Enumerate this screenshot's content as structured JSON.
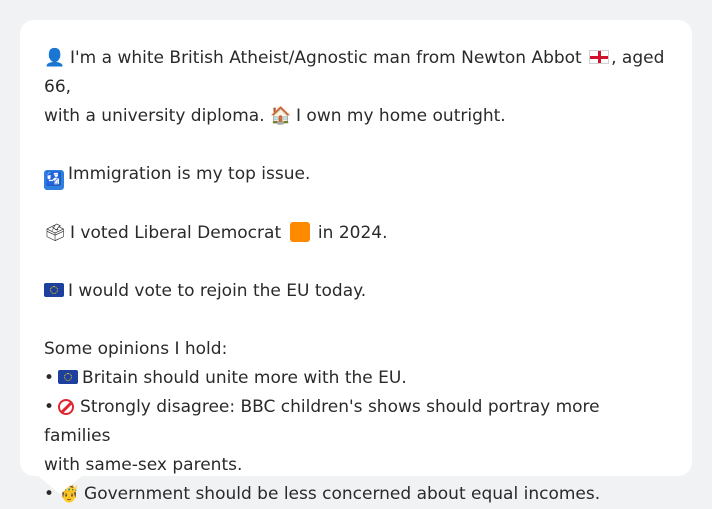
{
  "profile": {
    "identity_line1": "I'm a white British Atheist/Agnostic man from Newton Abbot",
    "identity_line1_suffix": ", aged 66,",
    "identity_line2": "with a university diploma.",
    "home": "I own my home outright.",
    "top_issue": "Immigration is my top issue.",
    "vote_prefix": "I voted Liberal Democrat",
    "vote_suffix": "in 2024.",
    "eu_vote": "I would vote to rejoin the EU today.",
    "opinions_heading": "Some opinions I hold:",
    "opinions": [
      {
        "bullet": "•",
        "text": "Britain should unite more with the EU."
      },
      {
        "bullet": "•",
        "text_line1": "Strongly disagree: BBC children's shows should portray more families",
        "text_line2": "with same-sex parents."
      },
      {
        "bullet": "•",
        "text": "Government should be less concerned about equal incomes."
      }
    ]
  },
  "icons": {
    "person": "person-icon",
    "england_flag": "england-flag-icon",
    "house": "house-icon",
    "passport_control": "passport-control-icon",
    "ballot_box": "ballot-box-icon",
    "lib_dem_square": "orange-square-icon",
    "eu_flag": "eu-flag-icon",
    "no_entry": "prohibited-icon",
    "crown_person": "king-icon"
  },
  "colors": {
    "background": "#f1f2f4",
    "card": "#ffffff",
    "text": "#2a2a2a",
    "libdem_orange": "#ff8a00",
    "eu_blue": "#1d3f9e"
  }
}
